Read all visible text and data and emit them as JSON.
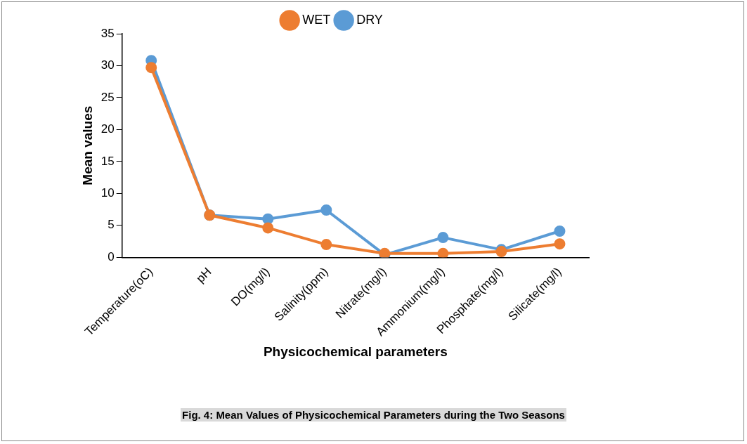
{
  "chart_data": {
    "type": "line",
    "xlabel": "Physicochemical parameters",
    "ylabel": "Mean values",
    "categories": [
      "Temperature(oC)",
      "pH",
      "DO(mg/l)",
      "Salinity(ppm)",
      "Nitrate(mg/l)",
      "Ammonium(mg/l)",
      "Phosphate(mg/l)",
      "Silicate(mg/l)"
    ],
    "series": [
      {
        "name": "DRY",
        "color": "#5b9bd5",
        "values": [
          30.8,
          6.6,
          6.0,
          7.4,
          0.4,
          3.1,
          1.2,
          4.1
        ]
      },
      {
        "name": "WET",
        "color": "#ed7d31",
        "values": [
          29.7,
          6.6,
          4.6,
          2.0,
          0.6,
          0.6,
          0.9,
          2.1
        ]
      }
    ],
    "ylim": [
      0,
      35
    ],
    "yticks": [
      0,
      5,
      10,
      15,
      20,
      25,
      30,
      35
    ],
    "grid": false,
    "legend": "top",
    "marker": "circle",
    "line_style": "solid",
    "annotations": [
      "Fig. 4: Mean Values of Physicochemical Parameters during the Two Seasons"
    ]
  }
}
